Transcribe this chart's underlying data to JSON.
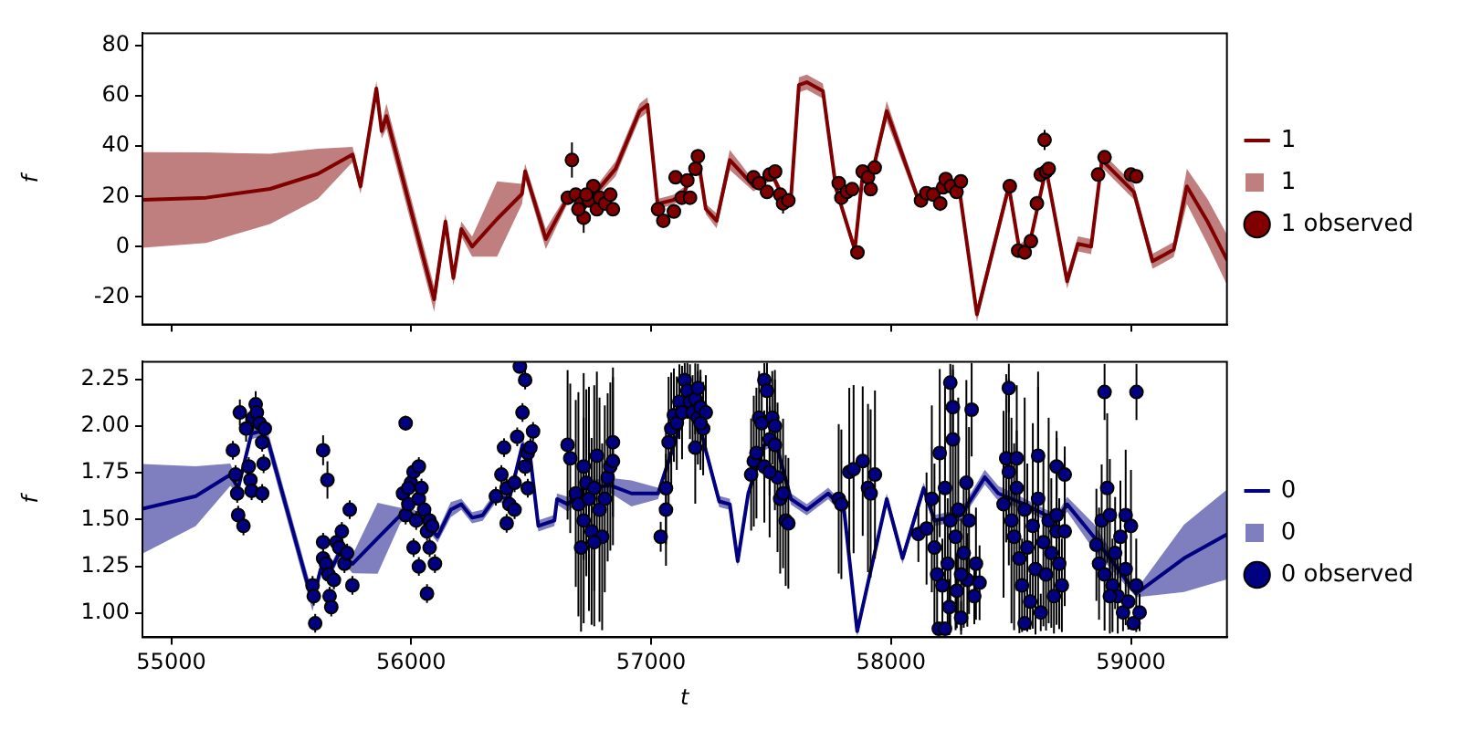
{
  "chart_data": [
    {
      "type": "line",
      "ylabel": "f",
      "xlim": [
        54880,
        59400
      ],
      "xticks": [
        55000,
        56000,
        57000,
        58000,
        59000
      ],
      "ylim": [
        -31,
        85
      ],
      "yticks": [
        -20,
        0,
        20,
        40,
        60,
        80
      ],
      "tick_labels": "y",
      "grid": false,
      "legend": "right",
      "series": [
        {
          "name": "1",
          "color": "#800000",
          "x": [
            54880,
            55146,
            55412,
            55611,
            55756,
            55789,
            55855,
            55877,
            55897,
            56096,
            56143,
            56176,
            56209,
            56254,
            56358,
            56462,
            56475,
            56561,
            56653,
            56761,
            56852,
            56952,
            56985,
            57027,
            57093,
            57140,
            57195,
            57228,
            57273,
            57328,
            57384,
            57427,
            57505,
            57550,
            57583,
            57616,
            57649,
            57716,
            57771,
            57849,
            57882,
            57926,
            57982,
            58115,
            58181,
            58281,
            58358,
            58491,
            58535,
            58580,
            58646,
            58734,
            58779,
            58834,
            58879,
            59012,
            59090,
            59134,
            59178,
            59233,
            59319,
            59399
          ],
          "values": [
            18.6,
            19.5,
            23,
            29,
            36.7,
            24,
            63,
            46,
            52,
            -21,
            10,
            -12.5,
            7,
            0,
            11,
            21,
            30,
            3,
            19.5,
            20.6,
            31,
            54,
            56.5,
            17,
            18.6,
            22,
            35.6,
            15,
            10.3,
            34.5,
            28.7,
            24,
            28.7,
            19.5,
            19.5,
            64.4,
            65.5,
            62,
            23,
            -1.2,
            28.7,
            31,
            54,
            18.4,
            21.8,
            25.3,
            -27,
            24,
            -1.2,
            2.2,
            31,
            -13.8,
            1.1,
            0,
            34.5,
            21.8,
            -5.8,
            -3.5,
            -1.2,
            24,
            10,
            -5
          ],
          "lower": [
            -0.4,
            1.5,
            9,
            19,
            33.7,
            21,
            60,
            43,
            47,
            -26,
            7,
            -15.5,
            4,
            -4,
            -4,
            17,
            27,
            -1,
            17.5,
            18.6,
            28,
            51,
            53.5,
            15,
            16.6,
            20,
            33.6,
            13,
            7.3,
            30.5,
            25.7,
            22,
            26.7,
            17.5,
            17.5,
            61.4,
            62.5,
            59,
            21,
            -3.2,
            26.7,
            29,
            50,
            16.4,
            19.8,
            23.3,
            -30,
            21,
            -3.2,
            0.2,
            29,
            -16.8,
            -1.9,
            -3,
            31.5,
            18.8,
            -8.8,
            -6.5,
            -4.2,
            17,
            1,
            -15
          ],
          "upper": [
            37.6,
            37.5,
            37,
            39,
            39.7,
            27,
            66,
            49,
            57,
            -16,
            13,
            -9.5,
            10,
            4,
            26,
            25,
            33,
            7,
            21.5,
            22.6,
            34,
            57,
            59.5,
            19,
            20.6,
            24,
            37.6,
            17,
            13.3,
            38.5,
            31.7,
            26,
            30.7,
            21.5,
            21.5,
            67.4,
            68.5,
            65,
            25,
            0.8,
            30.7,
            33,
            58,
            20.4,
            23.8,
            27.3,
            -24,
            27,
            0.8,
            4.2,
            33,
            -10.8,
            4.1,
            3,
            37.5,
            24.8,
            -2.8,
            -0.5,
            1.8,
            31,
            19,
            5
          ]
        },
        {
          "name": "1 observed",
          "type": "scatter",
          "color": "#800000",
          "marker": "circle",
          "x": [
            56670,
            56653,
            56686,
            56708,
            56719,
            56741,
            56759,
            56774,
            56786,
            56808,
            56830,
            56841,
            56697,
            56730,
            57029,
            57051,
            57095,
            57102,
            57128,
            57151,
            57162,
            57185,
            57195,
            57427,
            57450,
            57483,
            57494,
            57517,
            57538,
            57550,
            57572,
            57782,
            57793,
            57816,
            57838,
            57860,
            57882,
            57904,
            57915,
            57932,
            58125,
            58147,
            58176,
            58205,
            58217,
            58228,
            58250,
            58273,
            58291,
            58495,
            58530,
            58557,
            58583,
            58608,
            58624,
            58640,
            58646,
            58657,
            58863,
            58890,
            59000,
            59022
          ],
          "values": [
            34.5,
            19.5,
            20.7,
            17.2,
            11.5,
            18.4,
            24.1,
            14.9,
            19.5,
            17.2,
            20.7,
            14.9,
            14.9,
            20.7,
            14.9,
            10.3,
            14,
            27.6,
            19.5,
            26.4,
            19.5,
            31,
            36,
            27.6,
            25.3,
            21.8,
            28.7,
            29.9,
            20.7,
            17.2,
            18.4,
            25.3,
            19.5,
            21.8,
            22.9,
            -2.3,
            29.9,
            27.6,
            22.9,
            31.5,
            18.4,
            21.3,
            20.7,
            17.2,
            23.6,
            26.9,
            24.1,
            21.8,
            26,
            24.1,
            -1.6,
            -2.3,
            2.2,
            17.2,
            28.7,
            42.5,
            29.9,
            31,
            28.7,
            35.6,
            28.7,
            28
          ],
          "errors": [
            7,
            2,
            2,
            2,
            6,
            2,
            2,
            2,
            2,
            2,
            2,
            2,
            2,
            2,
            2,
            2,
            2,
            2,
            2,
            2,
            2,
            2,
            2,
            2,
            2,
            2,
            2,
            2,
            2,
            4,
            2,
            2,
            2,
            2,
            2,
            2,
            2,
            2,
            2,
            2,
            2,
            2,
            2,
            3,
            2,
            2,
            2,
            2,
            2,
            2,
            2,
            2,
            2,
            3,
            3,
            4,
            2,
            2,
            2,
            2,
            2,
            2
          ]
        }
      ]
    },
    {
      "type": "line",
      "xlabel": "t",
      "ylabel": "f",
      "xlim": [
        54880,
        59400
      ],
      "xticks": [
        55000,
        56000,
        57000,
        58000,
        59000
      ],
      "ylim": [
        0.87,
        2.345
      ],
      "yticks": [
        {
          "value": 1,
          "label": "1.00"
        },
        {
          "value": 1.25,
          "label": "1.25"
        },
        {
          "value": 1.5,
          "label": "1.50"
        },
        {
          "value": 1.75,
          "label": "1.75"
        },
        {
          "value": 2,
          "label": "2.00"
        },
        {
          "value": 2.25,
          "label": "2.25"
        }
      ],
      "grid": false,
      "legend": "right",
      "series": [
        {
          "name": "0",
          "color": "#000080",
          "x": [
            54880,
            55102,
            55246,
            55279,
            55334,
            55367,
            55401,
            55589,
            55623,
            55656,
            55700,
            55756,
            55860,
            55955,
            55988,
            56055,
            56110,
            56165,
            56209,
            56254,
            56298,
            56354,
            56409,
            56464,
            56497,
            56530,
            56597,
            56608,
            56653,
            56719,
            56830,
            56918,
            57029,
            57095,
            57140,
            57185,
            57228,
            57284,
            57328,
            57361,
            57405,
            57472,
            57516,
            57583,
            57649,
            57738,
            57804,
            57859,
            57982,
            58048,
            58136,
            58181,
            58291,
            58391,
            58447,
            58557,
            58690,
            58734,
            58845,
            59022,
            59221,
            59399
          ],
          "values": [
            1.558,
            1.625,
            1.74,
            1.668,
            1.96,
            1.972,
            1.93,
            1.06,
            1.235,
            1.206,
            1.32,
            1.263,
            1.4,
            1.523,
            1.538,
            1.495,
            1.408,
            1.553,
            1.582,
            1.51,
            1.523,
            1.625,
            1.61,
            1.9,
            1.827,
            1.466,
            1.495,
            1.61,
            1.582,
            1.668,
            1.683,
            1.64,
            1.64,
            1.9,
            2.074,
            2.102,
            1.87,
            1.597,
            1.582,
            1.278,
            1.64,
            1.9,
            1.93,
            1.61,
            1.553,
            1.64,
            1.553,
            0.902,
            1.61,
            1.293,
            1.668,
            1.495,
            1.523,
            1.727,
            1.64,
            1.582,
            1.495,
            1.582,
            1.408,
            1.104,
            1.293,
            1.42
          ],
          "lower": [
            1.318,
            1.465,
            1.68,
            1.638,
            1.93,
            1.942,
            1.88,
            1.01,
            1.205,
            1.176,
            1.29,
            1.213,
            1.21,
            1.483,
            1.508,
            1.465,
            1.378,
            1.513,
            1.552,
            1.48,
            1.493,
            1.595,
            1.58,
            1.87,
            1.797,
            1.436,
            1.465,
            1.58,
            1.542,
            1.628,
            1.643,
            1.57,
            1.61,
            1.87,
            2.044,
            2.072,
            1.84,
            1.567,
            1.552,
            1.248,
            1.61,
            1.87,
            1.9,
            1.58,
            1.523,
            1.61,
            1.523,
            0.872,
            1.58,
            1.263,
            1.638,
            1.465,
            1.493,
            1.687,
            1.6,
            1.552,
            1.465,
            1.542,
            1.338,
            1.084,
            1.113,
            1.18
          ],
          "upper": [
            1.798,
            1.785,
            1.8,
            1.698,
            1.99,
            2.002,
            1.98,
            1.11,
            1.265,
            1.236,
            1.35,
            1.313,
            1.59,
            1.563,
            1.568,
            1.525,
            1.438,
            1.593,
            1.612,
            1.54,
            1.553,
            1.655,
            1.64,
            1.93,
            1.857,
            1.496,
            1.525,
            1.64,
            1.622,
            1.708,
            1.723,
            1.71,
            1.67,
            1.93,
            2.104,
            2.132,
            1.9,
            1.627,
            1.612,
            1.308,
            1.67,
            1.93,
            1.96,
            1.64,
            1.583,
            1.67,
            1.583,
            0.932,
            1.64,
            1.323,
            1.698,
            1.525,
            1.553,
            1.767,
            1.68,
            1.612,
            1.525,
            1.622,
            1.478,
            1.124,
            1.473,
            1.66
          ]
        },
        {
          "name": "0 observed",
          "type": "scatter",
          "color": "#000080",
          "marker": "circle",
          "x": [
            55257,
            55268,
            55275,
            55279,
            55286,
            55301,
            55312,
            55323,
            55330,
            55335,
            55341,
            55352,
            55357,
            55368,
            55379,
            55385,
            55390,
            55379,
            55589,
            55594,
            55600,
            55633,
            55633,
            55645,
            55656,
            55660,
            55667,
            55678,
            55689,
            55700,
            55711,
            55722,
            55733,
            55744,
            55755,
            55633,
            55651,
            55977,
            55966,
            55977,
            55988,
            55999,
            56010,
            56021,
            56032,
            56032,
            56043,
            56054,
            56066,
            56077,
            56077,
            56088,
            56099,
            56010,
            56032,
            56066,
            55988,
            56353,
            56376,
            56387,
            56398,
            56398,
            56409,
            56431,
            56442,
            56453,
            56464,
            56475,
            56475,
            56486,
            56497,
            56508,
            56486,
            56431,
            56652,
            56663,
            56686,
            56697,
            56708,
            56719,
            56730,
            56741,
            56752,
            56763,
            56774,
            56785,
            56796,
            56807,
            56819,
            56830,
            56841,
            56841,
            56719,
            56763,
            57040,
            57062,
            57073,
            57084,
            57095,
            57107,
            57118,
            57129,
            57062,
            57140,
            57151,
            57162,
            57173,
            57184,
            57195,
            57206,
            57217,
            57228,
            57184,
            57195,
            57206,
            57417,
            57428,
            57439,
            57450,
            57461,
            57472,
            57483,
            57494,
            57505,
            57516,
            57527,
            57538,
            57550,
            57561,
            57572,
            57472,
            57494,
            57516,
            57782,
            57793,
            57826,
            57844,
            57882,
            57904,
            57915,
            57933,
            58114,
            58148,
            58170,
            58181,
            58192,
            58199,
            58203,
            58214,
            58225,
            58236,
            58243,
            58247,
            58258,
            58269,
            58274,
            58280,
            58292,
            58303,
            58314,
            58318,
            58325,
            58336,
            58347,
            58354,
            58369,
            58225,
            58292,
            58258,
            58247,
            58469,
            58480,
            58491,
            58502,
            58513,
            58524,
            58535,
            58546,
            58557,
            58568,
            58580,
            58591,
            58602,
            58613,
            58624,
            58635,
            58646,
            58657,
            58668,
            58679,
            58690,
            58701,
            58712,
            58724,
            58557,
            58613,
            58491,
            58690,
            58524,
            58690,
            58724,
            58890,
            59023,
            58856,
            58867,
            58878,
            58890,
            58901,
            58912,
            58923,
            58934,
            58945,
            58956,
            58967,
            58978,
            58989,
            59000,
            59011,
            59022,
            59036,
            58978,
            58912
          ],
          "values": [
            1.871,
            1.741,
            1.64,
            1.524,
            2.073,
            1.466,
            1.987,
            1.784,
            1.712,
            1.654,
            2.045,
            2.117,
            2.073,
            2.016,
            1.914,
            1.799,
            1.987,
            1.64,
            1.148,
            1.09,
            0.945,
            1.379,
            1.292,
            1.264,
            1.206,
            1.09,
            1.032,
            1.177,
            1.379,
            1.35,
            1.437,
            1.264,
            1.321,
            1.553,
            1.148,
            1.871,
            1.712,
            2.016,
            1.64,
            1.524,
            1.582,
            1.697,
            1.755,
            1.495,
            1.784,
            1.611,
            1.669,
            1.553,
            1.437,
            1.35,
            1.495,
            1.466,
            1.264,
            1.35,
            1.249,
            1.104,
            1.669,
            1.625,
            1.741,
            1.885,
            1.668,
            1.48,
            1.582,
            1.697,
            1.943,
            2.319,
            2.073,
            2.247,
            1.784,
            1.856,
            1.885,
            1.972,
            1.668,
            1.553,
            1.9,
            1.828,
            1.64,
            1.582,
            1.35,
            1.495,
            1.697,
            1.611,
            1.437,
            1.669,
            1.842,
            1.553,
            1.408,
            1.611,
            1.726,
            1.784,
            1.914,
            1.813,
            1.784,
            1.379,
            1.408,
            1.668,
            1.914,
            1.987,
            2.059,
            2.016,
            2.131,
            2.073,
            1.553,
            2.247,
            2.189,
            2.131,
            2.073,
            2.146,
            2.045,
            2.102,
            1.987,
            2.073,
            1.885,
            2.204,
            2.016,
            1.741,
            1.813,
            1.856,
            2.045,
            2.016,
            2.247,
            2.189,
            1.929,
            2.045,
            1.9,
            1.726,
            1.611,
            1.64,
            1.495,
            1.48,
            1.784,
            1.755,
            2.001,
            1.611,
            1.582,
            1.755,
            1.77,
            1.813,
            1.669,
            1.64,
            1.741,
            1.423,
            1.452,
            1.611,
            1.35,
            1.206,
            0.916,
            1.856,
            1.148,
            1.669,
            1.264,
            1.032,
            1.495,
            1.929,
            1.408,
            1.119,
            1.553,
            0.974,
            1.321,
            1.697,
            1.177,
            1.495,
            2.088,
            1.09,
            1.264,
            1.162,
            0.916,
            1.206,
            2.102,
            2.233,
            1.582,
            1.828,
            2.204,
            1.495,
            1.408,
            1.669,
            1.292,
            1.148,
            1.553,
            1.35,
            1.061,
            1.466,
            1.235,
            1.611,
            1.003,
            1.379,
            1.206,
            1.495,
            1.321,
            1.09,
            1.437,
            1.264,
            1.148,
            1.437,
            0.945,
            1.842,
            1.755,
            1.524,
            1.828,
            1.784,
            1.741,
            2.183,
            2.183,
            1.365,
            1.264,
            1.495,
            1.206,
            1.669,
            1.524,
            1.148,
            1.321,
            1.09,
            1.408,
            1.003,
            1.235,
            1.061,
            1.466,
            0.945,
            1.148,
            1.003,
            1.524,
            1.09
          ],
          "errors": [
            0.05,
            0.05,
            0.05,
            0.05,
            0.07,
            0.05,
            0.07,
            0.05,
            0.05,
            0.05,
            0.07,
            0.07,
            0.07,
            0.05,
            0.05,
            0.05,
            0.05,
            0.05,
            0.05,
            0.05,
            0.05,
            0.05,
            0.05,
            0.05,
            0.05,
            0.05,
            0.05,
            0.05,
            0.05,
            0.05,
            0.05,
            0.05,
            0.05,
            0.05,
            0.05,
            0.08,
            0.1,
            0.04,
            0.05,
            0.05,
            0.05,
            0.05,
            0.05,
            0.05,
            0.05,
            0.05,
            0.05,
            0.05,
            0.05,
            0.05,
            0.05,
            0.05,
            0.05,
            0.05,
            0.05,
            0.05,
            0.05,
            0.05,
            0.05,
            0.05,
            0.05,
            0.05,
            0.05,
            0.05,
            0.05,
            0.02,
            0.05,
            0.05,
            0.05,
            0.05,
            0.05,
            0.05,
            0.05,
            0.05,
            0.4,
            0.4,
            0.5,
            0.6,
            0.45,
            0.55,
            0.5,
            0.6,
            0.5,
            0.55,
            0.45,
            0.6,
            0.5,
            0.5,
            0.45,
            0.45,
            0.4,
            0.45,
            0.5,
            0.45,
            0.08,
            0.3,
            0.35,
            0.3,
            0.25,
            0.25,
            0.2,
            0.25,
            0.3,
            0.09,
            0.15,
            0.2,
            0.2,
            0.19,
            0.25,
            0.2,
            0.25,
            0.2,
            0.3,
            0.13,
            0.25,
            0.3,
            0.35,
            0.35,
            0.25,
            0.25,
            0.09,
            0.15,
            0.3,
            0.25,
            0.35,
            0.4,
            0.4,
            0.4,
            0.35,
            0.35,
            0.3,
            0.35,
            0.3,
            0.4,
            0.4,
            0.45,
            0.45,
            0.4,
            0.45,
            0.45,
            0.45,
            0.15,
            0.3,
            0.5,
            0.45,
            0.3,
            0.03,
            0.45,
            0.25,
            0.55,
            0.35,
            0.15,
            0.6,
            0.4,
            0.5,
            0.2,
            0.6,
            0.09,
            0.4,
            0.55,
            0.25,
            0.5,
            0.25,
            0.15,
            0.3,
            0.2,
            0.03,
            0.3,
            0.2,
            0.1,
            0.5,
            0.45,
            0.13,
            0.55,
            0.5,
            0.55,
            0.4,
            0.25,
            0.6,
            0.45,
            0.15,
            0.55,
            0.35,
            0.6,
            0.1,
            0.45,
            0.3,
            0.55,
            0.4,
            0.2,
            0.5,
            0.35,
            0.25,
            0.4,
            null,
            0.45,
            0.5,
            0.45,
            0.15,
            0.15,
            0.15,
            0.15,
            0.15,
            0.3,
            0.3,
            0.3,
            0.3,
            0.4,
            0.3,
            0.25,
            0.3,
            0.2,
            0.3,
            0.1,
            0.3,
            0.15,
            0.3,
            null,
            0.25,
            0.1,
            0.35,
            0.2
          ]
        }
      ]
    }
  ]
}
